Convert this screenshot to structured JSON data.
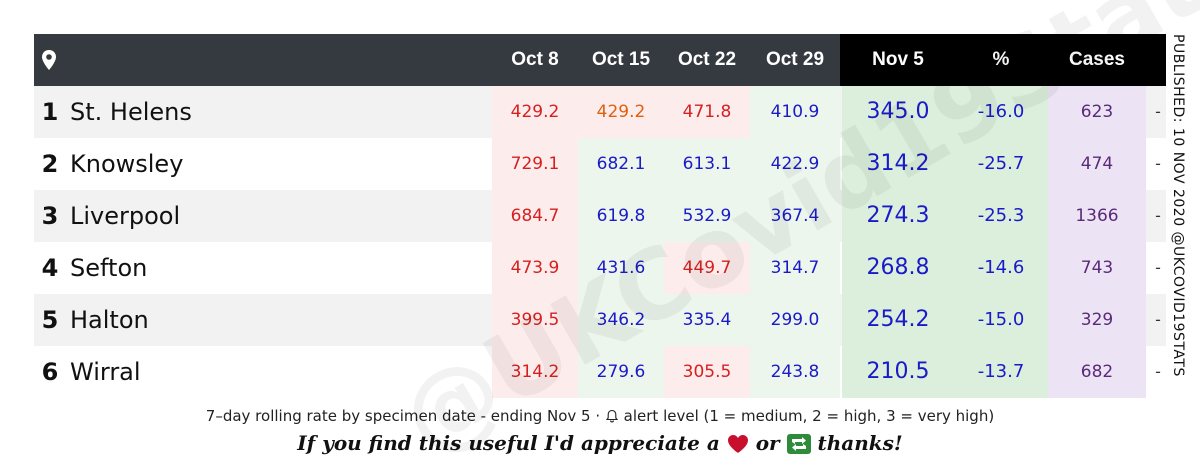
{
  "header": {
    "location_icon": "map-pin-icon",
    "columns": [
      "Oct 8",
      "Oct 15",
      "Oct 22",
      "Oct 29",
      "Nov 5",
      "%",
      "Cases"
    ]
  },
  "rows": [
    {
      "rank": "1",
      "name": "St. Helens",
      "oct8": "429.2",
      "oct15": "429.2",
      "oct22": "471.8",
      "oct29": "410.9",
      "nov5": "345.0",
      "pct": "-16.0",
      "cases": "623",
      "dash": "-"
    },
    {
      "rank": "2",
      "name": "Knowsley",
      "oct8": "729.1",
      "oct15": "682.1",
      "oct22": "613.1",
      "oct29": "422.9",
      "nov5": "314.2",
      "pct": "-25.7",
      "cases": "474",
      "dash": "-"
    },
    {
      "rank": "3",
      "name": "Liverpool",
      "oct8": "684.7",
      "oct15": "619.8",
      "oct22": "532.9",
      "oct29": "367.4",
      "nov5": "274.3",
      "pct": "-25.3",
      "cases": "1366",
      "dash": "-"
    },
    {
      "rank": "4",
      "name": "Sefton",
      "oct8": "473.9",
      "oct15": "431.6",
      "oct22": "449.7",
      "oct29": "314.7",
      "nov5": "268.8",
      "pct": "-14.6",
      "cases": "743",
      "dash": "-"
    },
    {
      "rank": "5",
      "name": "Halton",
      "oct8": "399.5",
      "oct15": "346.2",
      "oct22": "335.4",
      "oct29": "299.0",
      "nov5": "254.2",
      "pct": "-15.0",
      "cases": "329",
      "dash": "-"
    },
    {
      "rank": "6",
      "name": "Wirral",
      "oct8": "314.2",
      "oct15": "279.6",
      "oct22": "305.5",
      "oct29": "243.8",
      "nov5": "210.5",
      "pct": "-13.7",
      "cases": "682",
      "dash": "-"
    }
  ],
  "footnote": {
    "before_icon": "7–day rolling rate by specimen date - ending Nov 5 · ",
    "icon": "bell-icon",
    "after_icon": " alert level (1 = medium, 2 = high, 3 = very high)"
  },
  "thanks": {
    "part1": "If you find this useful I'd appreciate a ",
    "icon1": "heart-icon",
    "part2": " or ",
    "icon2": "retweet-icon",
    "part3": " thanks!"
  },
  "side_text": "PUBLISHED: 10 NOV 2020   @UKCOVID19STATS",
  "watermark": "@UKCovid19Stats",
  "colors": {
    "header_bg": "#353a40",
    "header_highlight_bg": "#000000",
    "red_text": "#d62020",
    "orange_text": "#e06010",
    "blue_text": "#1a1ac8",
    "purple_text": "#5a2a7a",
    "green_bg": "#dcefdc",
    "red_bg": "#fdecec",
    "purple_bg": "#ece4f4"
  }
}
